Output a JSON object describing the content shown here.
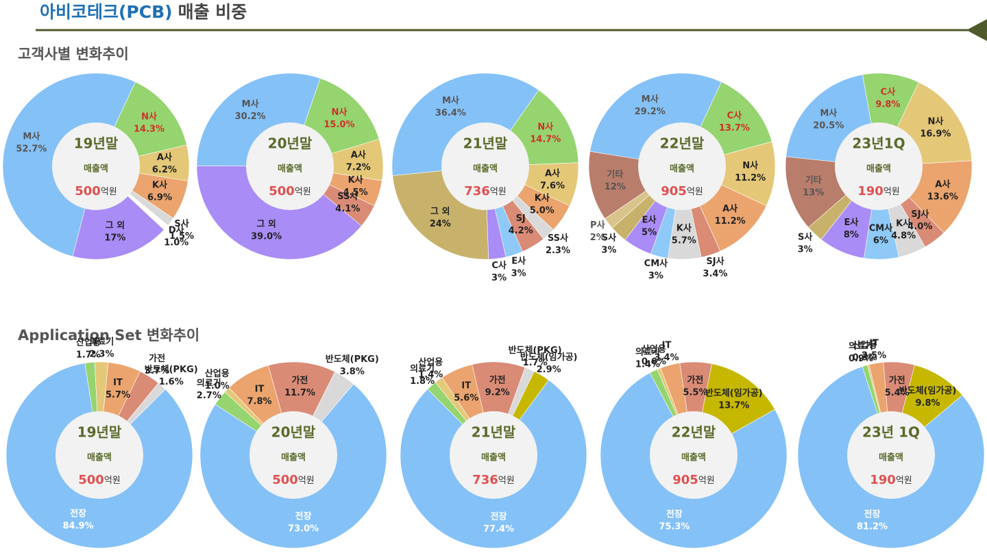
{
  "header": {
    "title": "아비코테크(PCB)",
    "subtitle": "매출 비중"
  },
  "sections": [
    "고객사별 변화추이",
    "Application Set 변화추이"
  ],
  "chart_data": [
    {
      "type": "pie",
      "center_title": "19년말",
      "center_label": "매출액",
      "center_value": 500,
      "center_unit": "억원",
      "start_angle": 25,
      "categories": [
        "N사",
        "A사",
        "K사",
        "S사",
        "D사",
        "그 외",
        "M사"
      ],
      "values": [
        14.3,
        6.2,
        6.9,
        1.5,
        1.0,
        17,
        52.7
      ],
      "value_labels": [
        "14.3%",
        "6.2%",
        "6.9%",
        "1.5%",
        "1.0%",
        "17%",
        "52.7%"
      ],
      "colors": [
        "#95d46f",
        "#e4c878",
        "#eba46e",
        "#d9d9d9",
        "#ffffff",
        "#a98cf6",
        "#84c1f7"
      ],
      "label_colors": [
        "#d0302a",
        "#222",
        "#222",
        "#222",
        "#222",
        "#222",
        "#555"
      ]
    },
    {
      "type": "pie",
      "center_title": "20년말",
      "center_label": "매출액",
      "center_value": 500,
      "center_unit": "억원",
      "start_angle": 19,
      "categories": [
        "N사",
        "A사",
        "K사",
        "SS사",
        "그 외",
        "M사"
      ],
      "values": [
        15.0,
        7.2,
        4.5,
        4.1,
        39.0,
        30.2
      ],
      "value_labels": [
        "15.0%",
        "7.2%",
        "4.5%",
        "4.1%",
        "39.0%",
        "30.2%"
      ],
      "colors": [
        "#95d46f",
        "#e4c878",
        "#eba46e",
        "#d98b76",
        "#a98cf6",
        "#84c1f7"
      ],
      "label_colors": [
        "#d0302a",
        "#222",
        "#222",
        "#222",
        "#222",
        "#555"
      ]
    },
    {
      "type": "pie",
      "center_title": "21년말",
      "center_label": "매출액",
      "center_value": 736,
      "center_unit": "억원",
      "start_angle": 35,
      "categories": [
        "N사",
        "A사",
        "K사",
        "SS사",
        "SJ",
        "E사",
        "C사",
        "그 외",
        "M사"
      ],
      "values": [
        14.7,
        7.6,
        5.0,
        2.3,
        4.2,
        3,
        3,
        24,
        36.4
      ],
      "value_labels": [
        "14.7%",
        "7.6%",
        "5.0%",
        "2.3%",
        "4.2%",
        "3%",
        "3%",
        "24%",
        "36.4%"
      ],
      "colors": [
        "#95d46f",
        "#e4c878",
        "#eba46e",
        "#d9d9d9",
        "#d98b76",
        "#8ec9f7",
        "#a98cf6",
        "#c8b26b",
        "#84c1f7"
      ],
      "label_colors": [
        "#d0302a",
        "#222",
        "#222",
        "#222",
        "#222",
        "#222",
        "#222",
        "#222",
        "#555"
      ]
    },
    {
      "type": "pie",
      "center_title": "22년말",
      "center_label": "매출액",
      "center_value": 905,
      "center_unit": "억원",
      "start_angle": 25,
      "categories": [
        "C사",
        "N사",
        "A사",
        "SJ사",
        "K사",
        "CM사",
        "E사",
        "S사",
        "P사",
        "기타",
        "M사"
      ],
      "values": [
        13.7,
        11.2,
        11.2,
        3.4,
        5.7,
        3,
        5,
        3,
        2,
        12,
        29.2
      ],
      "value_labels": [
        "13.7%",
        "11.2%",
        "11.2%",
        "3.4%",
        "5.7%",
        "3%",
        "5%",
        "3%",
        "2%",
        "12%",
        "29.2%"
      ],
      "colors": [
        "#95d46f",
        "#e4c878",
        "#eba46e",
        "#d98b76",
        "#d9d9d9",
        "#8ec9f7",
        "#a98cf6",
        "#c8b26b",
        "#d8c48a",
        "#b97d6b",
        "#84c1f7"
      ],
      "label_colors": [
        "#d0302a",
        "#222",
        "#222",
        "#222",
        "#222",
        "#222",
        "#222",
        "#222",
        "#555",
        "#555",
        "#555"
      ]
    },
    {
      "type": "pie",
      "center_title": "23년1Q",
      "center_label": "매출액",
      "center_value": 190,
      "center_unit": "억원",
      "start_angle": -10,
      "categories": [
        "C사",
        "N사",
        "A사",
        "SJ사",
        "K사",
        "CM사",
        "E사",
        "S사",
        "기타",
        "M사"
      ],
      "values": [
        9.8,
        16.9,
        13.6,
        4.0,
        4.8,
        6,
        8,
        3,
        13,
        20.5
      ],
      "value_labels": [
        "9.8%",
        "16.9%",
        "13.6%",
        "4.0%",
        "4.8%",
        "6%",
        "8%",
        "3%",
        "13%",
        "20.5%"
      ],
      "colors": [
        "#95d46f",
        "#e4c878",
        "#eba46e",
        "#d98b76",
        "#d9d9d9",
        "#8ec9f7",
        "#a98cf6",
        "#c8b26b",
        "#b97d6b",
        "#84c1f7"
      ],
      "label_colors": [
        "#d0302a",
        "#222",
        "#222",
        "#222",
        "#222",
        "#222",
        "#222",
        "#222",
        "#555",
        "#555"
      ]
    },
    {
      "type": "pie",
      "center_title": "19년말",
      "center_label": "매출액",
      "center_value": 500,
      "center_unit": "억원",
      "start_angle": -9,
      "categories": [
        "산업용",
        "의료기",
        "IT",
        "가전",
        "반도체(PKG)",
        "전장"
      ],
      "values": [
        1.7,
        2.3,
        5.7,
        3.7,
        1.6,
        84.9
      ],
      "value_labels": [
        "1.7%",
        "2.3%",
        "5.7%",
        "3.7%",
        "1.6%",
        "84.9%"
      ],
      "colors": [
        "#95d46f",
        "#e4c878",
        "#eba46e",
        "#d98b76",
        "#d9d9d9",
        "#84c1f7"
      ]
    },
    {
      "type": "pie",
      "center_title": "20년말",
      "center_label": "매출액",
      "center_value": 500,
      "center_unit": "억원",
      "start_angle": -57,
      "categories": [
        "의료기",
        "산업용",
        "IT",
        "가전",
        "반도체(PKG)",
        "전장"
      ],
      "values": [
        2.7,
        1.0,
        7.8,
        11.7,
        3.8,
        73.0
      ],
      "value_labels": [
        "2.7%",
        "1.0%",
        "7.8%",
        "11.7%",
        "3.8%",
        "73.0%"
      ],
      "colors": [
        "#95d46f",
        "#e4c878",
        "#eba46e",
        "#d98b76",
        "#d9d9d9",
        "#84c1f7"
      ]
    },
    {
      "type": "pie",
      "center_title": "21년말",
      "center_label": "매출액",
      "center_value": 736,
      "center_unit": "억원",
      "start_angle": -45,
      "categories": [
        "의료기",
        "산업용",
        "IT",
        "가전",
        "반도체(PKG)",
        "반도체(임가공)",
        "전장"
      ],
      "values": [
        1.8,
        1.4,
        5.6,
        9.2,
        1.7,
        2.9,
        77.4
      ],
      "value_labels": [
        "1.8%",
        "1.4%",
        "5.6%",
        "9.2%",
        "1.7%",
        "2.9%",
        "77.4%"
      ],
      "colors": [
        "#95d46f",
        "#e4c878",
        "#eba46e",
        "#d98b76",
        "#d9d9d9",
        "#c6b800",
        "#84c1f7"
      ]
    },
    {
      "type": "pie",
      "center_title": "22년말",
      "center_label": "매출액",
      "center_value": 905,
      "center_unit": "억원",
      "start_angle": -28,
      "categories": [
        "의료기",
        "산업용",
        "IT",
        "가전",
        "반도체(임가공)",
        "전장"
      ],
      "values": [
        1.4,
        0.6,
        3.4,
        5.5,
        13.7,
        75.3
      ],
      "value_labels": [
        "1.4%",
        "0.6%",
        "3.4%",
        "5.5%",
        "13.7%",
        "75.3%"
      ],
      "colors": [
        "#95d46f",
        "#e4c878",
        "#eba46e",
        "#d98b76",
        "#c6b800",
        "#84c1f7"
      ]
    },
    {
      "type": "pie",
      "center_title": "23년 1Q",
      "center_label": "매출액",
      "center_value": 190,
      "center_unit": "억원",
      "start_angle": -18,
      "categories": [
        "의료기",
        "산업용",
        "IT",
        "가전",
        "반도체(임가공)",
        "전장"
      ],
      "values": [
        0.9,
        0.3,
        2.5,
        5.4,
        9.8,
        81.2
      ],
      "value_labels": [
        "0.9%",
        "0.3%",
        "2.5%",
        "5.4%",
        "9.8%",
        "81.2%"
      ],
      "colors": [
        "#95d46f",
        "#e4c878",
        "#eba46e",
        "#d98b76",
        "#c6b800",
        "#84c1f7"
      ]
    }
  ]
}
